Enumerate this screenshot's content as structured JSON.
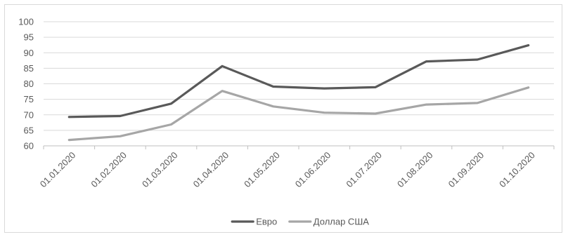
{
  "chart_data": {
    "type": "line",
    "title": "",
    "xlabel": "",
    "ylabel": "",
    "categories": [
      "01.01.2020",
      "01.02.2020",
      "01.03.2020",
      "01.04.2020",
      "01.05.2020",
      "01.06.2020",
      "01.07.2020",
      "01.08.2020",
      "01.09.2020",
      "01.10.2020"
    ],
    "ylim": [
      60,
      100
    ],
    "yticks": [
      60,
      65,
      70,
      75,
      80,
      85,
      90,
      95,
      100
    ],
    "grid": true,
    "legend_position": "bottom",
    "series": [
      {
        "name": "Евро",
        "color": "#595959",
        "values": [
          69.3,
          69.6,
          73.6,
          85.7,
          79.1,
          78.5,
          78.9,
          87.2,
          87.8,
          92.4
        ]
      },
      {
        "name": "Доллар США",
        "color": "#a6a6a6",
        "values": [
          61.9,
          63.1,
          66.9,
          77.7,
          72.7,
          70.7,
          70.4,
          73.3,
          73.8,
          78.8
        ]
      }
    ]
  }
}
